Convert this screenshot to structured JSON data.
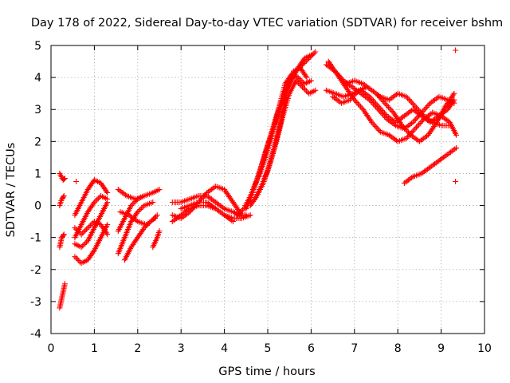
{
  "chart_data": {
    "type": "scatter",
    "title": "Day 178 of 2022, Sidereal Day-to-day VTEC variation (SDTVAR) for receiver bshm",
    "xlabel": "GPS time / hours",
    "ylabel": "SDTVAR / TECUs",
    "xlim": [
      0,
      10
    ],
    "ylim": [
      -4,
      5
    ],
    "xticks": [
      0,
      1,
      2,
      3,
      4,
      5,
      6,
      7,
      8,
      9,
      10
    ],
    "yticks": [
      -4,
      -3,
      -2,
      -1,
      0,
      1,
      2,
      3,
      4,
      5
    ],
    "grid": true,
    "marker": "+",
    "color": "#ff0000",
    "curves": [
      {
        "x": [
          0.2,
          0.24,
          0.28,
          0.32
        ],
        "y": [
          -3.2,
          -2.95,
          -2.7,
          -2.45
        ]
      },
      {
        "x": [
          0.2,
          0.24,
          0.28,
          0.32
        ],
        "y": [
          1.0,
          0.9,
          0.8,
          0.85
        ]
      },
      {
        "x": [
          0.2,
          0.25,
          0.3
        ],
        "y": [
          0.0,
          0.2,
          0.3
        ]
      },
      {
        "x": [
          0.2,
          0.25,
          0.3
        ],
        "y": [
          -1.3,
          -1.0,
          -0.9
        ]
      },
      {
        "x": [
          0.55,
          0.7,
          0.85,
          1.0,
          1.15,
          1.3
        ],
        "y": [
          -0.7,
          -0.9,
          -0.7,
          -0.5,
          -0.6,
          -0.9
        ]
      },
      {
        "x": [
          0.55,
          0.7,
          0.85,
          1.0,
          1.15,
          1.3
        ],
        "y": [
          -1.6,
          -1.8,
          -1.7,
          -1.4,
          -1.0,
          -0.6
        ]
      },
      {
        "x": [
          0.55,
          0.7,
          0.85,
          1.0,
          1.15,
          1.3
        ],
        "y": [
          -1.0,
          -0.6,
          -0.2,
          0.1,
          0.3,
          0.2
        ]
      },
      {
        "x": [
          0.55,
          0.7,
          0.85,
          1.0,
          1.15,
          1.3
        ],
        "y": [
          -0.3,
          0.1,
          0.5,
          0.8,
          0.7,
          0.4
        ]
      },
      {
        "x": [
          0.55,
          0.7,
          0.85,
          1.0,
          1.15,
          1.3
        ],
        "y": [
          -1.2,
          -1.3,
          -1.1,
          -0.7,
          -0.3,
          0.1
        ]
      },
      {
        "x": [
          1.55,
          1.75,
          1.95,
          2.15,
          2.35,
          2.5
        ],
        "y": [
          0.5,
          0.3,
          0.2,
          0.3,
          0.4,
          0.5
        ]
      },
      {
        "x": [
          1.55,
          1.7,
          1.85,
          2.0,
          2.15,
          2.35
        ],
        "y": [
          -1.5,
          -1.0,
          -0.5,
          -0.2,
          0.0,
          0.1
        ]
      },
      {
        "x": [
          1.55,
          1.7,
          1.85,
          2.0,
          2.15,
          2.35
        ],
        "y": [
          -0.8,
          -0.4,
          0.0,
          0.2,
          0.3,
          0.4
        ]
      },
      {
        "x": [
          1.7,
          1.85,
          2.0,
          2.15,
          2.3,
          2.45
        ],
        "y": [
          -1.7,
          -1.3,
          -1.0,
          -0.7,
          -0.5,
          -0.3
        ]
      },
      {
        "x": [
          1.6,
          1.8,
          2.0,
          2.2,
          2.4
        ],
        "y": [
          -0.2,
          -0.3,
          -0.5,
          -0.6,
          -0.4
        ]
      },
      {
        "x": [
          2.35,
          2.45,
          2.5
        ],
        "y": [
          -1.3,
          -1.0,
          -0.8
        ]
      },
      {
        "x": [
          2.8,
          3.0,
          3.2,
          3.4,
          3.6,
          3.8,
          4.0,
          4.2,
          4.35,
          4.5
        ],
        "y": [
          0.1,
          0.1,
          0.2,
          0.3,
          0.3,
          0.1,
          -0.1,
          -0.2,
          -0.3,
          -0.3
        ]
      },
      {
        "x": [
          2.8,
          3.0,
          3.2,
          3.4,
          3.6,
          3.8,
          4.0,
          4.2,
          4.4
        ],
        "y": [
          -0.3,
          -0.4,
          -0.2,
          0.1,
          0.4,
          0.6,
          0.5,
          0.1,
          -0.3
        ]
      },
      {
        "x": [
          2.8,
          3.0,
          3.2,
          3.4,
          3.6,
          3.8,
          4.0,
          4.2,
          4.4,
          4.6
        ],
        "y": [
          -0.5,
          -0.3,
          -0.1,
          0.0,
          0.0,
          -0.1,
          -0.3,
          -0.4,
          -0.4,
          -0.3
        ]
      },
      {
        "x": [
          3.0,
          3.2,
          3.4,
          3.6,
          3.8,
          4.0,
          4.2
        ],
        "y": [
          -0.1,
          0.0,
          0.1,
          0.1,
          -0.1,
          -0.3,
          -0.5
        ]
      },
      {
        "x": [
          4.3,
          4.45,
          4.6,
          4.75,
          4.9,
          5.05,
          5.2,
          5.35,
          5.5,
          5.65,
          5.8,
          5.95,
          6.1
        ],
        "y": [
          -0.3,
          -0.1,
          0.3,
          0.8,
          1.4,
          2.1,
          2.8,
          3.4,
          3.9,
          4.2,
          4.4,
          4.6,
          4.8
        ]
      },
      {
        "x": [
          4.5,
          4.65,
          4.8,
          4.95,
          5.1,
          5.25,
          5.4,
          5.55,
          5.7,
          5.85,
          6.0
        ],
        "y": [
          -0.1,
          0.4,
          1.0,
          1.7,
          2.3,
          2.9,
          3.4,
          3.9,
          4.3,
          4.6,
          4.7
        ]
      },
      {
        "x": [
          4.6,
          4.75,
          4.9,
          5.05,
          5.2,
          5.35,
          5.5,
          5.65,
          5.8,
          5.95,
          6.1
        ],
        "y": [
          0.0,
          0.3,
          0.7,
          1.3,
          2.0,
          2.8,
          3.5,
          3.9,
          3.7,
          3.5,
          3.6
        ]
      },
      {
        "x": [
          4.7,
          4.85,
          5.0,
          5.15,
          5.3,
          5.45,
          5.6,
          5.75,
          5.9
        ],
        "y": [
          0.2,
          0.6,
          1.1,
          1.8,
          2.6,
          3.6,
          4.2,
          4.3,
          4.0
        ]
      },
      {
        "x": [
          4.8,
          4.95,
          5.1,
          5.25,
          5.4,
          5.55,
          5.7,
          5.85,
          6.0
        ],
        "y": [
          0.9,
          1.5,
          2.2,
          3.0,
          3.8,
          4.1,
          4.0,
          3.8,
          3.9
        ]
      },
      {
        "x": [
          6.35,
          6.55,
          6.75,
          6.95,
          7.15,
          7.35,
          7.55,
          7.75,
          7.95,
          8.15,
          8.35,
          8.55,
          8.75,
          8.95,
          9.15,
          9.3
        ],
        "y": [
          4.4,
          4.2,
          3.9,
          3.7,
          3.5,
          3.3,
          3.0,
          2.7,
          2.5,
          2.4,
          2.6,
          2.9,
          3.2,
          3.4,
          3.3,
          3.2
        ]
      },
      {
        "x": [
          6.35,
          6.55,
          6.75,
          6.95,
          7.15,
          7.35,
          7.55,
          7.75,
          7.95,
          8.15,
          8.35,
          8.55,
          8.75,
          8.95,
          9.15,
          9.3
        ],
        "y": [
          3.6,
          3.5,
          3.4,
          3.5,
          3.6,
          3.4,
          3.1,
          2.8,
          2.6,
          2.8,
          3.0,
          2.8,
          2.6,
          2.8,
          3.0,
          3.3
        ]
      },
      {
        "x": [
          6.4,
          6.6,
          6.8,
          7.0,
          7.2,
          7.4,
          7.6,
          7.8,
          8.0,
          8.2,
          8.4,
          8.6,
          8.8,
          9.0,
          9.2,
          9.35
        ],
        "y": [
          4.5,
          4.1,
          3.7,
          3.3,
          3.0,
          2.6,
          2.3,
          2.2,
          2.0,
          2.1,
          2.4,
          2.7,
          2.9,
          2.8,
          2.6,
          2.2
        ]
      },
      {
        "x": [
          6.5,
          6.7,
          6.9,
          7.1,
          7.3,
          7.5,
          7.7,
          7.9,
          8.1,
          8.3,
          8.5,
          8.7,
          8.9,
          9.1,
          9.3
        ],
        "y": [
          3.4,
          3.2,
          3.3,
          3.6,
          3.7,
          3.5,
          3.2,
          2.9,
          2.5,
          2.2,
          2.0,
          2.2,
          2.6,
          3.1,
          3.5
        ]
      },
      {
        "x": [
          6.8,
          7.0,
          7.2,
          7.4,
          7.6,
          7.8,
          8.0,
          8.2,
          8.4,
          8.6,
          8.8,
          9.0,
          9.2
        ],
        "y": [
          3.8,
          3.9,
          3.8,
          3.6,
          3.4,
          3.3,
          3.5,
          3.4,
          3.1,
          2.8,
          2.6,
          2.5,
          2.5
        ]
      },
      {
        "x": [
          8.15,
          8.35,
          8.55,
          8.75,
          8.95,
          9.15,
          9.35
        ],
        "y": [
          0.7,
          0.9,
          1.0,
          1.2,
          1.4,
          1.6,
          1.8
        ]
      },
      {
        "x": [
          9.33
        ],
        "y": [
          0.75
        ]
      },
      {
        "x": [
          9.33
        ],
        "y": [
          4.85
        ]
      },
      {
        "x": [
          0.58
        ],
        "y": [
          0.75
        ]
      }
    ]
  }
}
